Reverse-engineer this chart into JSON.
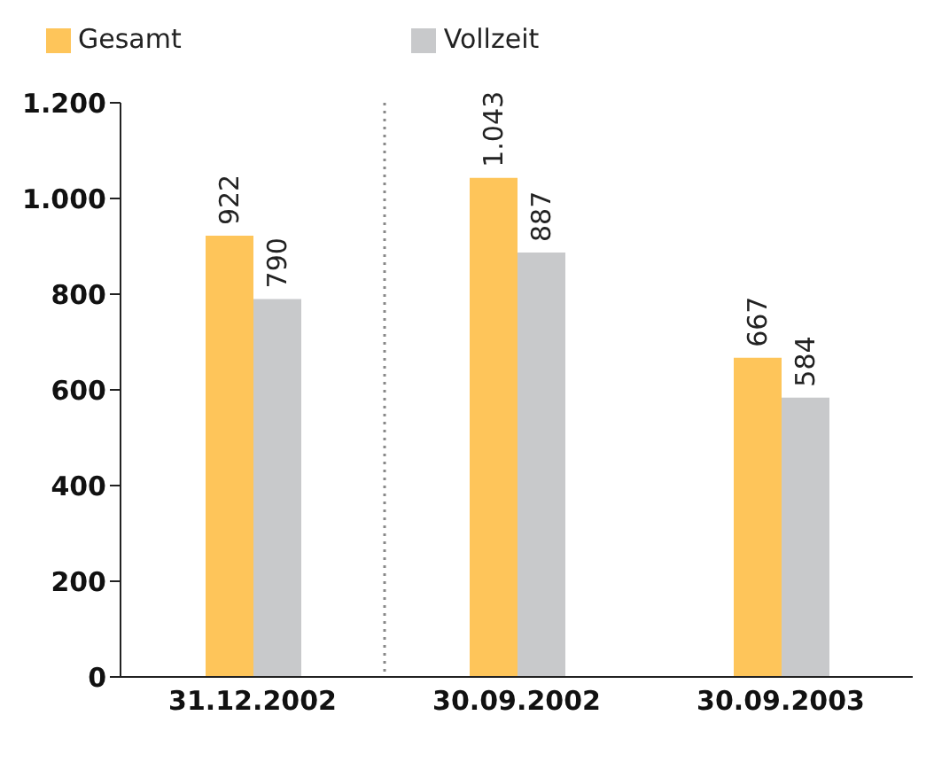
{
  "chart_data": {
    "type": "bar",
    "categories": [
      "31.12.2002",
      "30.09.2002",
      "30.09.2003"
    ],
    "series": [
      {
        "name": "Gesamt",
        "color": "#fec55a",
        "values": [
          922,
          1043,
          667
        ],
        "value_labels": [
          "922",
          "1.043",
          "667"
        ]
      },
      {
        "name": "Vollzeit",
        "color": "#c8c9cb",
        "values": [
          790,
          887,
          584
        ],
        "value_labels": [
          "790",
          "887",
          "584"
        ]
      }
    ],
    "ylim": [
      0,
      1200
    ],
    "yticks": [
      0,
      200,
      400,
      600,
      800,
      {
        "value": 1000,
        "label": "1.000"
      },
      {
        "value": 1200,
        "label": "1.200"
      }
    ],
    "legend": "top left"
  }
}
